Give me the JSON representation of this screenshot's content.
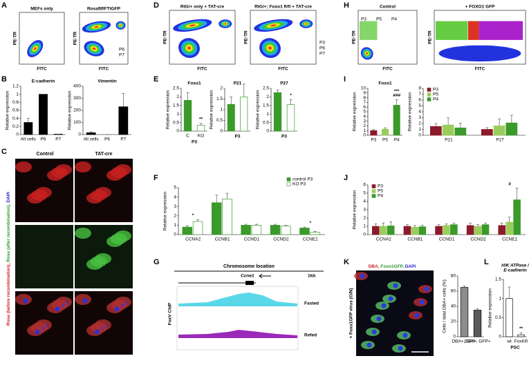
{
  "panel_labels": [
    "A",
    "B",
    "C",
    "D",
    "E",
    "F",
    "G",
    "H",
    "I",
    "J",
    "K",
    "L"
  ],
  "panel_a": {
    "left_title": "MEFs only",
    "right_title": "RosafIRFTtGFP",
    "y_label": "PE-TR",
    "x_label": "FITC",
    "gates": [
      "P6",
      "P7"
    ]
  },
  "panel_c": {
    "columns": [
      "Control",
      "TAT-cre"
    ],
    "side_label": [
      "Rosa (before recombination),",
      " Rosa (after recombination),",
      " DAPI"
    ]
  },
  "panel_d": {
    "left_title": "RtG/+ only + TAT-cre",
    "right_title": "RtG/+; Foxo1 fl/fl + TAT-cre",
    "y_label": "PE-TR",
    "x_label": "FITC",
    "gates": [
      "P3",
      "P6",
      "P7"
    ]
  },
  "panel_g": {
    "title": "Chromosome location",
    "gene": "Ccne1",
    "scale": "1kb",
    "y_label": "FoxV ChIP",
    "tracks": [
      "Fasted",
      "Refed"
    ]
  },
  "panel_h": {
    "left_title": "Control",
    "right_title": "+ FOXO1 GFP",
    "y_label": "PE-TR",
    "x_label": "FITC",
    "gates": [
      "P3",
      "P5",
      "P4"
    ]
  },
  "panel_k": {
    "title_parts": [
      "DBA,",
      " Foxo1GFP,",
      " DAPI"
    ],
    "side_label": "+ Foxo1GFP virus (O/N)"
  },
  "chart_data": [
    {
      "type": "bar",
      "title": "E-cadherin",
      "y_label": "Relative expression",
      "categories": [
        "All cells",
        "P6",
        "P7"
      ],
      "values": [
        0.3,
        1,
        0.01
      ],
      "errors": [
        0.1,
        0,
        0
      ],
      "color": "#000000",
      "ylim": [
        0,
        1.2
      ],
      "yticks": [
        0,
        0.2,
        0.4,
        0.6,
        0.8,
        1,
        1.2
      ]
    },
    {
      "type": "bar",
      "title": "Vimentin",
      "y_label": "Relative expression",
      "categories": [
        "All cells",
        "P6",
        "P7"
      ],
      "values": [
        15,
        0,
        230
      ],
      "errors": [
        8,
        0,
        110
      ],
      "color": "#000000",
      "ylim": [
        0,
        400
      ],
      "yticks": [
        0,
        100,
        200,
        300,
        400
      ]
    },
    {
      "type": "bar",
      "title": "Foxo1",
      "y_label": "Relative expression",
      "x_label": "P3",
      "categories": [
        "C",
        "KO"
      ],
      "values": [
        1.8,
        0.35
      ],
      "errors": [
        0.45,
        0.1
      ],
      "colors": [
        "#3a9a2a",
        "#ffffff"
      ],
      "stroke": "#3a9a2a",
      "ylim": [
        0,
        2.5
      ],
      "yticks": [
        0,
        0.5,
        1,
        1.5,
        2,
        2.5
      ],
      "annotations": [
        {
          "text": "**",
          "category": 1
        }
      ]
    },
    {
      "type": "bar",
      "title": "P21",
      "y_label": "Relative expression",
      "x_label": "P3",
      "categories": [
        null,
        null
      ],
      "values": [
        1.25,
        1.6
      ],
      "errors": [
        0.35,
        0.6
      ],
      "colors": [
        "#3a9a2a",
        "#ffffff"
      ],
      "stroke": "#3a9a2a",
      "ylim": [
        0,
        2
      ],
      "yticks": [
        0,
        0.5,
        1,
        1.5,
        2
      ]
    },
    {
      "type": "bar",
      "title": "P27",
      "y_label": "Relative expression",
      "x_label": "P3",
      "categories": [
        null,
        null
      ],
      "values": [
        2.25,
        1.55
      ],
      "errors": [
        0.15,
        0.3
      ],
      "colors": [
        "#3a9a2a",
        "#ffffff"
      ],
      "stroke": "#3a9a2a",
      "ylim": [
        0,
        2.5
      ],
      "yticks": [
        0,
        0.5,
        1,
        1.5,
        2,
        2.5
      ],
      "annotations": [
        {
          "text": "*",
          "category": 1
        }
      ]
    },
    {
      "type": "bar",
      "y_label": "Relative expression",
      "categories": [
        "CCNA2",
        "CCNB1",
        "CCND1",
        "CCND2",
        "CCNE1"
      ],
      "series": [
        {
          "name": "control P3",
          "color": "#3a9a2a",
          "fill": "#3a9a2a",
          "values": [
            0.8,
            3.4,
            1.0,
            1.0,
            0.7
          ],
          "errors": [
            0.15,
            0.8,
            0.1,
            0.1,
            0.1
          ]
        },
        {
          "name": "KO P3",
          "color": "#3a9a2a",
          "fill": "#ffffff",
          "values": [
            1.4,
            3.8,
            1.0,
            0.9,
            0.25
          ],
          "errors": [
            0.2,
            0.6,
            0.1,
            0.1,
            0.1
          ]
        }
      ],
      "ylim": [
        0,
        5
      ],
      "yticks": [
        0,
        1,
        2,
        3,
        4,
        5
      ],
      "legend": "top-right",
      "annotations": [
        {
          "text": "*",
          "category": 0
        },
        {
          "text": "*",
          "category": 4
        }
      ]
    },
    {
      "type": "bar",
      "title": "Foxo1",
      "y_label": "Relative expression",
      "categories": [
        "P3",
        "P5",
        "P4"
      ],
      "values": [
        1,
        1.3,
        6.4
      ],
      "errors": [
        0.2,
        0.3,
        1.2
      ],
      "colors": [
        "#8b1a2b",
        "#9acd5a",
        "#3a9a2a"
      ],
      "ylim": [
        0,
        10
      ],
      "yticks": [
        0,
        1,
        2,
        3,
        4,
        5,
        6,
        7,
        8,
        9,
        10
      ],
      "annotations": [
        {
          "text": "###",
          "category": 2
        },
        {
          "text": "***",
          "category": 2
        }
      ]
    },
    {
      "type": "bar",
      "y_label": "Relative expression",
      "categories": [
        "P21",
        "P27"
      ],
      "series": [
        {
          "name": "P3",
          "color": "#8b1a2b",
          "values": [
            1.5,
            1.0
          ],
          "errors": [
            0.5,
            0.3
          ]
        },
        {
          "name": "P5",
          "color": "#9acd5a",
          "values": [
            1.75,
            1.6
          ],
          "errors": [
            1.2,
            1.2
          ]
        },
        {
          "name": "P4",
          "color": "#3a9a2a",
          "values": [
            1.25,
            2.1
          ],
          "errors": [
            0.8,
            1.3
          ]
        }
      ],
      "ylim": [
        0,
        8
      ],
      "yticks": [
        0,
        1,
        2,
        3,
        4,
        5,
        6,
        7,
        8
      ],
      "legend": "top-left"
    },
    {
      "type": "bar",
      "y_label": "Relative expression",
      "categories": [
        "CCNA2",
        "CCNB1",
        "CCND1",
        "CCND2",
        "CCNE1"
      ],
      "series": [
        {
          "name": "P3",
          "color": "#8b1a2b",
          "values": [
            1,
            1,
            1,
            1.1,
            1.1
          ],
          "errors": [
            0.3,
            0.2,
            0.2,
            0.3,
            0.3
          ]
        },
        {
          "name": "P5",
          "color": "#9acd5a",
          "values": [
            1,
            0.9,
            1.1,
            1,
            1.5
          ],
          "errors": [
            0.4,
            0.2,
            0.2,
            0.2,
            0.6
          ]
        },
        {
          "name": "P4",
          "color": "#3a9a2a",
          "values": [
            1.05,
            0.95,
            1.2,
            1.2,
            4.2
          ],
          "errors": [
            0.5,
            0.2,
            0.2,
            0.2,
            1.4
          ]
        }
      ],
      "ylim": [
        0,
        6
      ],
      "yticks": [
        0,
        1,
        2,
        3,
        4,
        5,
        6
      ],
      "legend": "top-left",
      "annotations": [
        {
          "text": "#",
          "category": 4
        }
      ]
    },
    {
      "type": "bar",
      "y_label": "Cells / total DBA+ cells (%)",
      "categories": [
        "DBA+, GFP-",
        "DBA+, GFP+"
      ],
      "values": [
        65,
        35
      ],
      "errors": [
        2,
        2
      ],
      "colors": [
        "#8c8c8c",
        "#5a5a5a"
      ],
      "stroke": "#000000",
      "ylim": [
        0,
        80
      ],
      "yticks": [
        0,
        20,
        40,
        60,
        80
      ]
    },
    {
      "type": "bar",
      "title": [
        "H/K ATPase /",
        "E-cadherin"
      ],
      "y_label": "Relative expression",
      "x_label": "PSC",
      "categories": [
        "wt",
        "FoxKR"
      ],
      "values": [
        1.0,
        0.05
      ],
      "errors": [
        0.3,
        0.05
      ],
      "colors": [
        "#ffffff",
        "#ffffff"
      ],
      "stroke": "#000000",
      "ylim": [
        0,
        1.5
      ],
      "yticks": [
        0,
        0.5,
        1,
        1.5
      ],
      "annotations": [
        {
          "text": "**",
          "category": 1
        }
      ]
    }
  ]
}
